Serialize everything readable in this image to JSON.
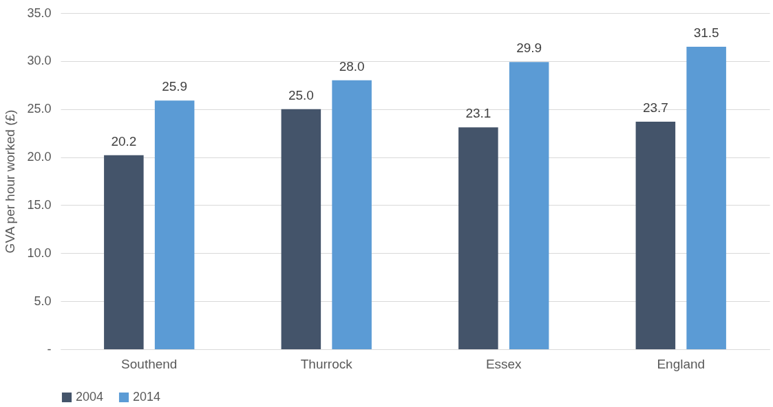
{
  "chart_data": {
    "type": "bar",
    "ylabel": "GVA per hour worked (£)",
    "categories": [
      "Southend",
      "Thurrock",
      "Essex",
      "England"
    ],
    "series": [
      {
        "name": "2004",
        "color": "#44546a",
        "values": [
          20.2,
          25.0,
          23.1,
          23.7
        ],
        "value_labels": [
          "20.2",
          "25.0",
          "23.1",
          "23.7"
        ]
      },
      {
        "name": "2014",
        "color": "#5b9bd5",
        "values": [
          25.9,
          28.0,
          29.9,
          31.5
        ],
        "value_labels": [
          "25.9",
          "28.0",
          "29.9",
          "31.5"
        ]
      }
    ],
    "ylim": [
      0,
      35
    ],
    "yticks": [
      {
        "value": 0,
        "label": "-"
      },
      {
        "value": 5,
        "label": "5.0"
      },
      {
        "value": 10,
        "label": "10.0"
      },
      {
        "value": 15,
        "label": "15.0"
      },
      {
        "value": 20,
        "label": "20.0"
      },
      {
        "value": 25,
        "label": "25.0"
      },
      {
        "value": 30,
        "label": "30.0"
      },
      {
        "value": 35,
        "label": "35.0"
      }
    ],
    "grid": "y",
    "legend": "bottom"
  }
}
